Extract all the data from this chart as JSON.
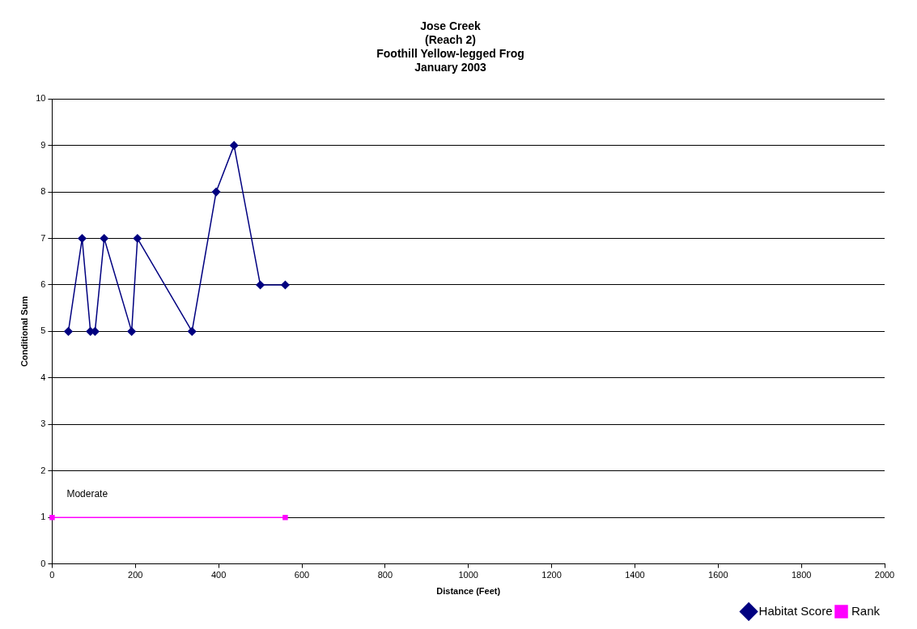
{
  "chart_data": {
    "type": "line",
    "title": "Jose Creek\n(Reach 2)\nFoothill Yellow-legged Frog\nJanuary 2003",
    "xlabel": "Distance (Feet)",
    "ylabel": "Conditional Sum",
    "series": [
      {
        "name": "Habitat Score",
        "color": "#000080",
        "marker": "diamond",
        "x": [
          39,
          72,
          92,
          103,
          125,
          191,
          205,
          336,
          394,
          437,
          500,
          560
        ],
        "values": [
          5,
          7,
          5,
          5,
          7,
          5,
          7,
          5,
          8,
          9,
          6,
          6
        ]
      },
      {
        "name": "Rank",
        "color": "#ff00ff",
        "marker": "square",
        "x": [
          0,
          560
        ],
        "values": [
          1,
          1
        ]
      }
    ],
    "annotations": [
      "Moderate"
    ],
    "xlim": [
      0,
      2000
    ],
    "xticks": [
      0,
      200,
      400,
      600,
      800,
      1000,
      1200,
      1400,
      1600,
      1800,
      2000
    ],
    "ylim": [
      0,
      10
    ],
    "yticks": [
      0,
      1,
      2,
      3,
      4,
      5,
      6,
      7,
      8,
      9,
      10
    ],
    "grid": "y",
    "legend": "bottom right",
    "line_style": "solid"
  }
}
